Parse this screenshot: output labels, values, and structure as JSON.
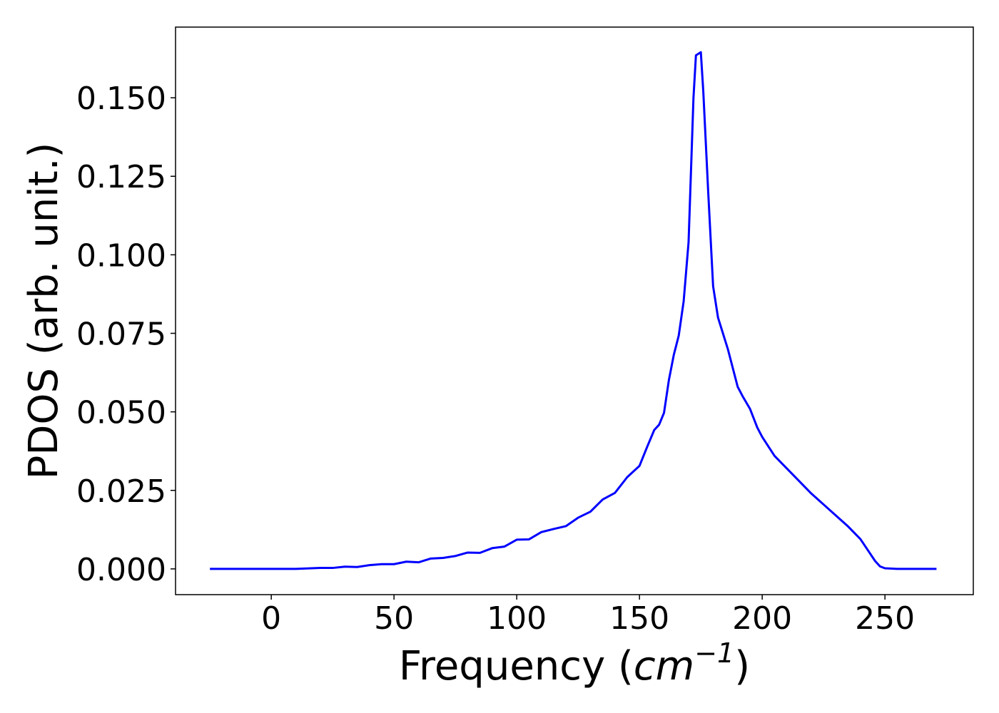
{
  "chart_data": {
    "type": "line",
    "title": "",
    "xlabel": {
      "open": "Frequency (",
      "unit": "cm",
      "exponent": "−1",
      "close": ")"
    },
    "ylabel": "PDOS (arb. unit.)",
    "xlim": [
      -39,
      286
    ],
    "ylim": [
      -0.0082,
      0.1725
    ],
    "xticks": [
      0,
      50,
      100,
      150,
      200,
      250
    ],
    "xtick_labels": [
      "0",
      "50",
      "100",
      "150",
      "200",
      "250"
    ],
    "yticks": [
      0.0,
      0.025,
      0.05,
      0.075,
      0.1,
      0.125,
      0.15
    ],
    "ytick_labels": [
      "0.000",
      "0.025",
      "0.050",
      "0.075",
      "0.100",
      "0.125",
      "0.150"
    ],
    "grid": false,
    "legend": "none",
    "series": [
      {
        "color": "#0000ff",
        "x": [
          -25,
          -10,
          0,
          10,
          20,
          25,
          30,
          35,
          40,
          45,
          50,
          55,
          60,
          65,
          70,
          75,
          80,
          85,
          90,
          95,
          100,
          105,
          110,
          115,
          120,
          125,
          130,
          135,
          140,
          145,
          150,
          153,
          156,
          158,
          160,
          162,
          164,
          166,
          168,
          170,
          172,
          173,
          175,
          176,
          178,
          180,
          182,
          184,
          186,
          188,
          190,
          192,
          195,
          198,
          200,
          205,
          210,
          215,
          220,
          225,
          230,
          235,
          240,
          243,
          246,
          248,
          250,
          255,
          260,
          265,
          271
        ],
        "y": [
          0.0,
          0.0,
          0.0,
          0.0,
          0.0003,
          0.0003,
          0.0007,
          0.0006,
          0.0012,
          0.0015,
          0.0015,
          0.0023,
          0.0021,
          0.0033,
          0.0035,
          0.0041,
          0.0052,
          0.0051,
          0.0066,
          0.0071,
          0.0093,
          0.0094,
          0.0117,
          0.0127,
          0.0136,
          0.0163,
          0.0182,
          0.0221,
          0.0242,
          0.0292,
          0.0328,
          0.0386,
          0.0442,
          0.0459,
          0.0497,
          0.0602,
          0.0682,
          0.0743,
          0.0852,
          0.104,
          0.15,
          0.1635,
          0.1645,
          0.152,
          0.12,
          0.09,
          0.08,
          0.075,
          0.07,
          0.064,
          0.058,
          0.055,
          0.051,
          0.045,
          0.042,
          0.036,
          0.032,
          0.028,
          0.024,
          0.0205,
          0.017,
          0.0135,
          0.0095,
          0.006,
          0.0025,
          0.0008,
          0.0002,
          0.0,
          0.0,
          0.0,
          0.0
        ]
      }
    ]
  }
}
